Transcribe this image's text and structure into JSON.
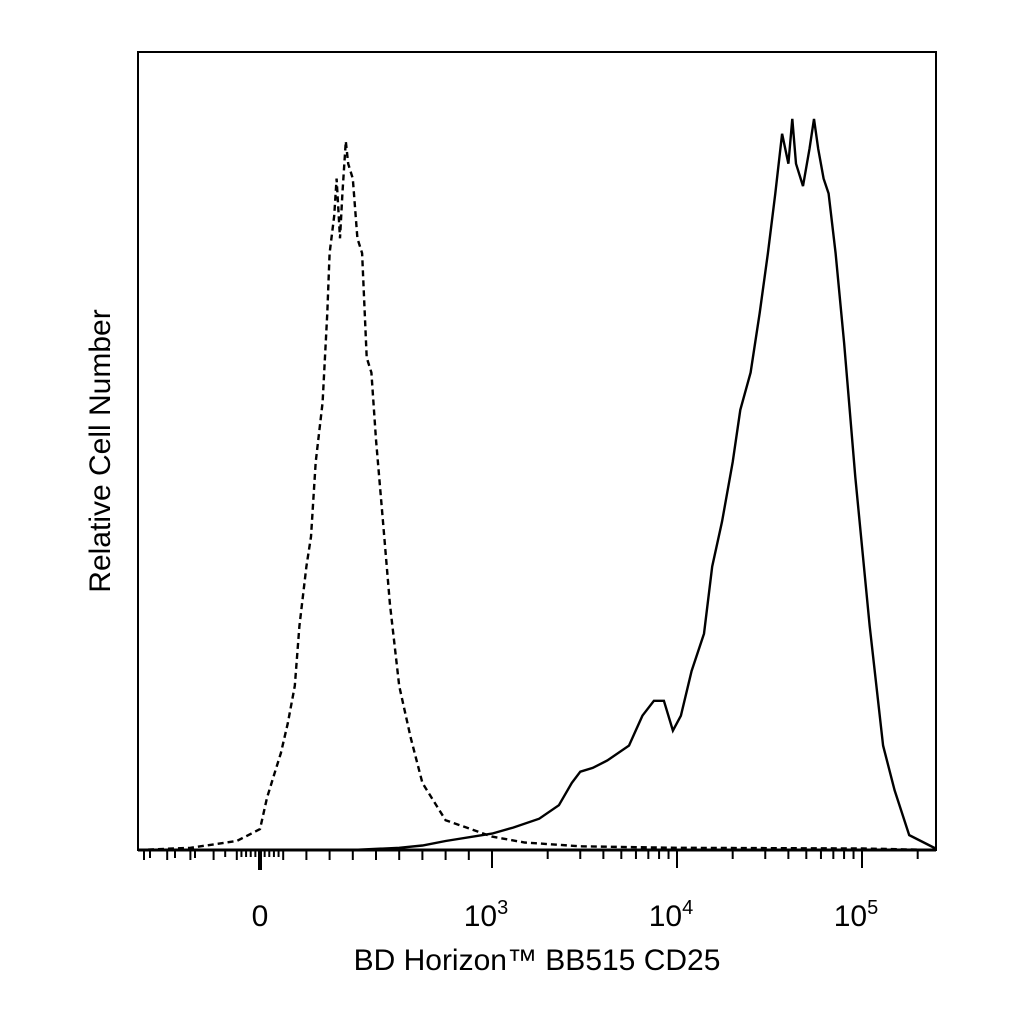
{
  "chart_data": {
    "type": "line",
    "title": "",
    "xlabel": "BD Horizon™ BB515 CD25",
    "ylabel": "Relative Cell Number",
    "x_scale": "biexponential",
    "xlim": [
      -600,
      250000
    ],
    "ylim": [
      0,
      1
    ],
    "y_tick_labels": false,
    "x_ticks": [
      {
        "value": 0,
        "base": "0",
        "exp": ""
      },
      {
        "value": 1000,
        "base": "10",
        "exp": "3"
      },
      {
        "value": 10000,
        "base": "10",
        "exp": "4"
      },
      {
        "value": 100000,
        "base": "10",
        "exp": "5"
      }
    ],
    "series": [
      {
        "style": "dashed",
        "color": "#000000",
        "points": [
          [
            -600,
            0
          ],
          [
            -300,
            0.003
          ],
          [
            -100,
            0.012
          ],
          [
            0,
            0.028
          ],
          [
            30,
            0.07
          ],
          [
            60,
            0.1
          ],
          [
            90,
            0.13
          ],
          [
            120,
            0.17
          ],
          [
            150,
            0.22
          ],
          [
            170,
            0.3
          ],
          [
            200,
            0.38
          ],
          [
            220,
            0.42
          ],
          [
            240,
            0.52
          ],
          [
            270,
            0.6
          ],
          [
            290,
            0.72
          ],
          [
            300,
            0.8
          ],
          [
            320,
            0.85
          ],
          [
            330,
            0.9
          ],
          [
            345,
            0.82
          ],
          [
            355,
            0.88
          ],
          [
            370,
            0.95
          ],
          [
            380,
            0.92
          ],
          [
            400,
            0.9
          ],
          [
            420,
            0.82
          ],
          [
            440,
            0.8
          ],
          [
            460,
            0.66
          ],
          [
            480,
            0.64
          ],
          [
            500,
            0.55
          ],
          [
            530,
            0.44
          ],
          [
            560,
            0.33
          ],
          [
            600,
            0.22
          ],
          [
            650,
            0.15
          ],
          [
            700,
            0.09
          ],
          [
            800,
            0.04
          ],
          [
            1000,
            0.018
          ],
          [
            1500,
            0.01
          ],
          [
            3000,
            0.005
          ],
          [
            10000,
            0.003
          ],
          [
            100000,
            0.002
          ],
          [
            250000,
            0
          ]
        ]
      },
      {
        "style": "solid",
        "color": "#000000",
        "points": [
          [
            -600,
            0
          ],
          [
            400,
            0
          ],
          [
            600,
            0.003
          ],
          [
            700,
            0.006
          ],
          [
            800,
            0.012
          ],
          [
            1000,
            0.022
          ],
          [
            1300,
            0.03
          ],
          [
            1800,
            0.042
          ],
          [
            2300,
            0.06
          ],
          [
            2700,
            0.09
          ],
          [
            3000,
            0.105
          ],
          [
            3500,
            0.11
          ],
          [
            4200,
            0.12
          ],
          [
            5500,
            0.14
          ],
          [
            6500,
            0.18
          ],
          [
            7500,
            0.2
          ],
          [
            8500,
            0.2
          ],
          [
            9500,
            0.16
          ],
          [
            10500,
            0.18
          ],
          [
            12000,
            0.24
          ],
          [
            14000,
            0.29
          ],
          [
            15500,
            0.38
          ],
          [
            17500,
            0.44
          ],
          [
            20000,
            0.52
          ],
          [
            22000,
            0.59
          ],
          [
            25000,
            0.64
          ],
          [
            28000,
            0.72
          ],
          [
            31000,
            0.8
          ],
          [
            34000,
            0.88
          ],
          [
            37000,
            0.96
          ],
          [
            40000,
            0.92
          ],
          [
            42000,
            0.98
          ],
          [
            44000,
            0.92
          ],
          [
            48000,
            0.89
          ],
          [
            52000,
            0.94
          ],
          [
            55000,
            0.98
          ],
          [
            58000,
            0.94
          ],
          [
            62000,
            0.9
          ],
          [
            66000,
            0.88
          ],
          [
            72000,
            0.8
          ],
          [
            80000,
            0.68
          ],
          [
            92000,
            0.5
          ],
          [
            110000,
            0.3
          ],
          [
            130000,
            0.14
          ],
          [
            150000,
            0.08
          ],
          [
            180000,
            0.02
          ],
          [
            250000,
            0.002
          ]
        ]
      }
    ]
  }
}
